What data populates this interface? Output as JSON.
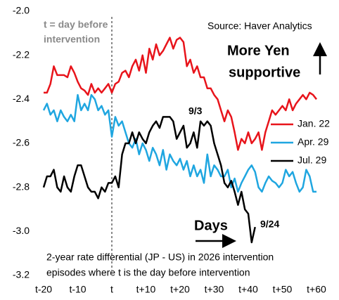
{
  "chart_data": {
    "type": "line",
    "annotations": {
      "source": "Source: Haver Analytics",
      "yen_lines": [
        "More Yen",
        "supportive"
      ],
      "t_lines": [
        "t = day before",
        "intervention"
      ],
      "label_93": "9/3",
      "label_924": "9/24",
      "days": "Days",
      "note_lines": [
        "2-year rate differential (JP - US) in 2026 intervention",
        "episodes where t is the day before intervention"
      ]
    },
    "x": [
      -20,
      -19,
      -18,
      -17,
      -16,
      -15,
      -14,
      -13,
      -12,
      -11,
      -10,
      -9,
      -8,
      -7,
      -6,
      -5,
      -4,
      -3,
      -2,
      -1,
      0,
      1,
      2,
      3,
      4,
      5,
      6,
      7,
      8,
      9,
      10,
      11,
      12,
      13,
      14,
      15,
      16,
      17,
      18,
      19,
      20,
      21,
      22,
      23,
      24,
      25,
      26,
      27,
      28,
      29,
      30,
      31,
      32,
      33,
      34,
      35,
      36,
      37,
      38,
      39,
      40,
      41,
      42,
      43,
      44,
      45,
      46,
      47,
      48,
      49,
      50,
      51,
      52,
      53,
      54,
      55,
      56,
      57,
      58,
      59,
      60
    ],
    "series": [
      {
        "name": "Jan. 22",
        "color": "#e8141b",
        "values": [
          -2.37,
          -2.37,
          -2.33,
          -2.25,
          -2.29,
          -2.29,
          -2.29,
          -2.3,
          -2.25,
          -2.28,
          -2.32,
          -2.35,
          -2.36,
          -2.38,
          -2.33,
          -2.37,
          -2.35,
          -2.37,
          -2.35,
          -2.33,
          -2.37,
          -2.33,
          -2.32,
          -2.28,
          -2.27,
          -2.3,
          -2.25,
          -2.22,
          -2.27,
          -2.2,
          -2.28,
          -2.17,
          -2.22,
          -2.15,
          -2.2,
          -2.18,
          -2.15,
          -2.12,
          -2.17,
          -2.13,
          -2.12,
          -2.14,
          -2.25,
          -2.22,
          -2.28,
          -2.25,
          -2.3,
          -2.3,
          -2.35,
          -2.35,
          -2.38,
          -2.4,
          -2.45,
          -2.5,
          -2.45,
          -2.48,
          -2.55,
          -2.63,
          -2.58,
          -2.6,
          -2.55,
          -2.6,
          -2.58,
          -2.55,
          -2.63,
          -2.55,
          -2.5,
          -2.45,
          -2.47,
          -2.45,
          -2.43,
          -2.45,
          -2.4,
          -2.45,
          -2.42,
          -2.4,
          -2.38,
          -2.4,
          -2.37,
          -2.38,
          -2.4
        ]
      },
      {
        "name": "Apr. 29",
        "color": "#1fa6e0",
        "values": [
          -2.45,
          -2.42,
          -2.47,
          -2.45,
          -2.5,
          -2.45,
          -2.48,
          -2.5,
          -2.47,
          -2.5,
          -2.38,
          -2.45,
          -2.42,
          -2.45,
          -2.38,
          -2.4,
          -2.45,
          -2.43,
          -2.47,
          -2.45,
          -2.57,
          -2.48,
          -2.52,
          -2.5,
          -2.55,
          -2.6,
          -2.62,
          -2.58,
          -2.65,
          -2.6,
          -2.63,
          -2.68,
          -2.62,
          -2.65,
          -2.7,
          -2.63,
          -2.72,
          -2.65,
          -2.68,
          -2.7,
          -2.67,
          -2.72,
          -2.68,
          -2.75,
          -2.7,
          -2.75,
          -2.72,
          -2.78,
          -2.65,
          -2.75,
          -2.7,
          -2.72,
          -2.75,
          -2.75,
          -2.72,
          -2.8,
          -2.76,
          -2.82,
          -2.78,
          -2.75,
          -2.72,
          -2.7,
          -2.73,
          -2.8,
          -2.82,
          -2.78,
          -2.75,
          -2.77,
          -2.78,
          -2.8,
          -2.78,
          -2.72,
          -2.75,
          -2.73,
          -2.78,
          -2.82,
          -2.8,
          -2.72,
          -2.75,
          -2.82,
          -2.82
        ]
      },
      {
        "name": "Jul. 29",
        "color": "#000000",
        "values": [
          -2.8,
          -2.75,
          -2.75,
          -2.72,
          -2.8,
          -2.82,
          -2.75,
          -2.8,
          -2.82,
          -2.75,
          -2.7,
          -2.7,
          -2.75,
          -2.8,
          -2.82,
          -2.82,
          -2.85,
          -2.8,
          -2.82,
          -2.78,
          -2.78,
          -2.75,
          -2.8,
          -2.65,
          -2.6,
          -2.6,
          -2.55,
          -2.6,
          -2.55,
          -2.58,
          -2.6,
          -2.55,
          -2.52,
          -2.5,
          -2.53,
          -2.48,
          -2.48,
          -2.48,
          -2.5,
          -2.58,
          -2.55,
          -2.52,
          -2.62,
          -2.6,
          -2.55,
          -2.62,
          -2.5,
          -2.52,
          -2.5,
          -2.52,
          -2.6,
          -2.65,
          -2.7,
          -2.78,
          -2.8,
          -2.77,
          -2.82,
          -2.88,
          -2.82,
          -2.9,
          -2.92,
          -3.05,
          -2.98,
          null,
          null,
          null,
          null,
          null,
          null,
          null,
          null,
          null,
          null,
          null,
          null,
          null,
          null,
          null,
          null,
          null,
          null
        ]
      }
    ],
    "xlim": [
      -20,
      60
    ],
    "xticks": [
      {
        "value": -20,
        "label": "t-20"
      },
      {
        "value": -10,
        "label": "t-10"
      },
      {
        "value": 0,
        "label": "t"
      },
      {
        "value": 10,
        "label": "t+10"
      },
      {
        "value": 20,
        "label": "t+20"
      },
      {
        "value": 30,
        "label": "t+30"
      },
      {
        "value": 40,
        "label": "t+40"
      },
      {
        "value": 50,
        "label": "t+50"
      },
      {
        "value": 60,
        "label": "t+60"
      }
    ],
    "ylim": [
      -3.2,
      -2.0
    ],
    "yticks": [
      {
        "value": -2.0,
        "label": "-2.0"
      },
      -2.2,
      -2.4,
      -2.6,
      -2.8,
      {
        "value": -3.0,
        "label": "-3.0"
      },
      -3.2
    ],
    "grid": false,
    "legend": "right"
  }
}
